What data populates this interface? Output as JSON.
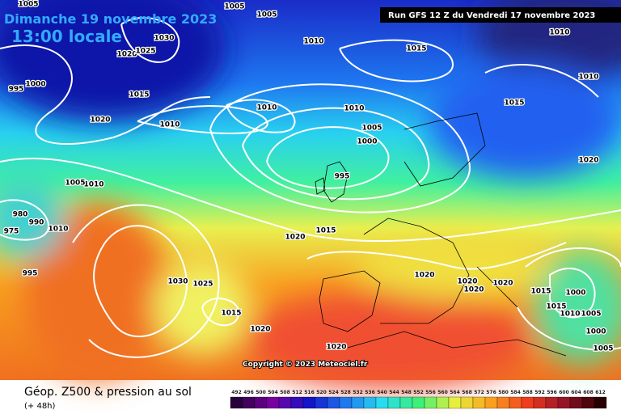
{
  "header": {
    "date": "Dimanche 19 novembre 2023",
    "time": "13:00 locale",
    "run": "Run GFS 12 Z du Vendredi 17 novembre 2023"
  },
  "isobar_labels": [
    "1005",
    "1005",
    "1005",
    "1030",
    "1020",
    "1025",
    "1010",
    "1015",
    "1010",
    "1010",
    "1000",
    "995",
    "1015",
    "1020",
    "1010",
    "1010",
    "1010",
    "1005",
    "1000",
    "1015",
    "995",
    "1020",
    "1010",
    "1005",
    "980",
    "990",
    "1010",
    "975",
    "1020",
    "1015",
    "995",
    "1030",
    "1025",
    "1020",
    "1020",
    "1020",
    "1020",
    "1015",
    "1000",
    "1015",
    "1015",
    "1010",
    "1005",
    "1020",
    "1000",
    "1005",
    "1020"
  ],
  "copyright": "Copyright © 2023 Meteociel.fr",
  "footer": {
    "title": "Géop. Z500 & pression au sol",
    "lead": "(+ 48h)"
  },
  "legend": [
    492,
    496,
    500,
    504,
    508,
    512,
    516,
    520,
    524,
    528,
    532,
    536,
    540,
    544,
    548,
    552,
    556,
    560,
    564,
    568,
    572,
    576,
    580,
    584,
    588,
    592,
    596,
    600,
    604,
    608,
    612
  ]
}
